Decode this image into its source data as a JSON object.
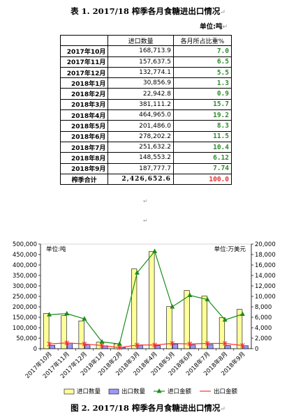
{
  "table": {
    "caption": "表 1.  2017/18 榨季各月食糖进出口情况",
    "unit": "单位:吨",
    "headers": [
      "进口数量",
      "各月所占比重%"
    ],
    "rows": [
      {
        "month": "2017年10月",
        "import": "168,713.9",
        "share": "7.0"
      },
      {
        "month": "2017年11月",
        "import": "157,637.5",
        "share": "6.5"
      },
      {
        "month": "2017年12月",
        "import": "132,774.1",
        "share": "5.5"
      },
      {
        "month": "2018年1月",
        "import": "30,856.9",
        "share": "1.3"
      },
      {
        "month": "2018年2月",
        "import": "22,942.8",
        "share": "0.9"
      },
      {
        "month": "2018年3月",
        "import": "381,111.2",
        "share": "15.7"
      },
      {
        "month": "2018年4月",
        "import": "464,965.0",
        "share": "19.2"
      },
      {
        "month": "2018年5月",
        "import": "201,486.0",
        "share": "8.3"
      },
      {
        "month": "2018年6月",
        "import": "278,202.2",
        "share": "11.5"
      },
      {
        "month": "2018年7月",
        "import": "251,632.2",
        "share": "10.4"
      },
      {
        "month": "2018年8月",
        "import": "148,553.2",
        "share": "6.12"
      },
      {
        "month": "2018年9月",
        "import": "187,777.7",
        "share": "7.74"
      }
    ],
    "total": {
      "label": "榨季合计",
      "import": "2,426,652.6",
      "share": "100.0"
    }
  },
  "figure_caption": "图 2.  2017/18 榨季各月食糖进出口情况",
  "colors": {
    "import_bar": "#ffff99",
    "export_bar": "#9999ff",
    "import_value": "#1a8c1a",
    "export_value": "#ff3030",
    "share_text": "#2e8b2e"
  },
  "chart_data": {
    "type": "bar",
    "left_unit_label": "单位:吨",
    "right_unit_label": "单位:万美元",
    "categories": [
      "2017年10月",
      "2017年11月",
      "2017年12月",
      "2018年1月",
      "2018年2月",
      "2018年3月",
      "2018年4月",
      "2018年5月",
      "2018年6月",
      "2018年7月",
      "2018年8月",
      "2018年9月"
    ],
    "left_axis": {
      "min": 0,
      "max": 500000,
      "ticks": [
        "0",
        "50,000",
        "100,000",
        "150,000",
        "200,000",
        "250,000",
        "300,000",
        "350,000",
        "400,000",
        "450,000",
        "500,000"
      ]
    },
    "right_axis": {
      "min": 0,
      "max": 20000,
      "ticks": [
        "0",
        "2,000",
        "4,000",
        "6,000",
        "8,000",
        "10,000",
        "12,000",
        "14,000",
        "16,000",
        "18,000",
        "20,000"
      ]
    },
    "series": [
      {
        "name": "进口数量",
        "kind": "bar",
        "axis": "left",
        "values": [
          168713.9,
          157637.5,
          132774.1,
          30856.9,
          22942.8,
          381111.2,
          464965.0,
          201486.0,
          278202.2,
          251632.2,
          148553.2,
          187777.7
        ]
      },
      {
        "name": "出口数量",
        "kind": "bar",
        "axis": "left",
        "values": [
          16000,
          26000,
          20000,
          14000,
          6000,
          16000,
          15000,
          22000,
          18000,
          20000,
          15000,
          14000
        ]
      },
      {
        "name": "进口金额",
        "kind": "line",
        "axis": "right",
        "values": [
          6500,
          6700,
          5700,
          1300,
          900,
          14500,
          18600,
          8000,
          10200,
          9400,
          5500,
          6600
        ]
      },
      {
        "name": "出口金额",
        "kind": "line",
        "axis": "right",
        "values": [
          900,
          1100,
          900,
          600,
          200,
          700,
          700,
          1000,
          900,
          1000,
          1000,
          600
        ]
      }
    ],
    "legend_position": "bottom"
  }
}
